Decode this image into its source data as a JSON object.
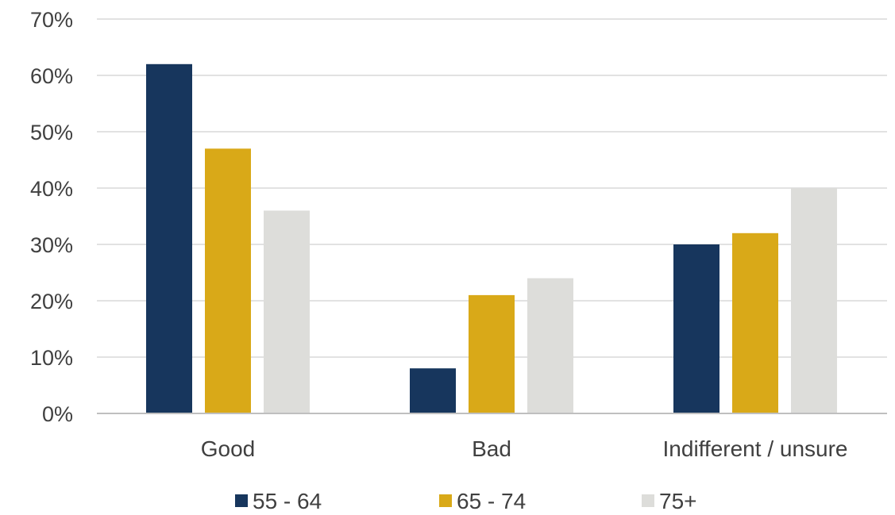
{
  "chart_data": {
    "type": "bar",
    "categories": [
      "Good",
      "Bad",
      "Indifferent / unsure"
    ],
    "series": [
      {
        "name": "55 - 64",
        "values": [
          62,
          8,
          30
        ],
        "color": "#17365D"
      },
      {
        "name": "65 - 74",
        "values": [
          47,
          21,
          32
        ],
        "color": "#D9A918"
      },
      {
        "name": "75+",
        "values": [
          36,
          24,
          40
        ],
        "color": "#DDDDDA"
      }
    ],
    "y_ticks": [
      "0%",
      "10%",
      "20%",
      "30%",
      "40%",
      "50%",
      "60%",
      "70%"
    ],
    "ylim": [
      0,
      70
    ],
    "ylabel": "",
    "xlabel": "",
    "title": "",
    "grid": true,
    "gridline_color": "#D9D9D9",
    "legend_position": "bottom"
  }
}
